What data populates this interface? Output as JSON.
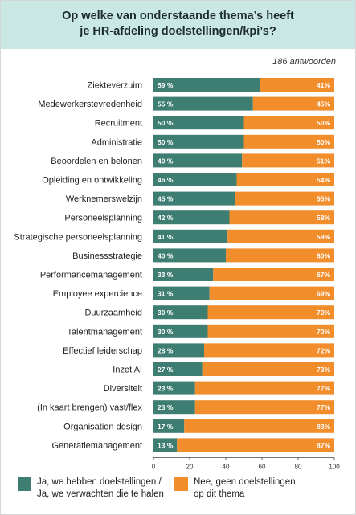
{
  "title_lines": [
    "Op welke van onderstaande thema’s heeft",
    "je HR-afdeling doelstellingen/kpi’s?"
  ],
  "responses": "186 antwoorden",
  "colors": {
    "yes": "#3d7d72",
    "no": "#f28d2c",
    "header_bg": "#c9e7e3"
  },
  "legend": [
    {
      "lines": [
        "Ja, we hebben doelstellingen /",
        "Ja, we verwachten die te halen"
      ]
    },
    {
      "lines": [
        "Nee, geen doelstellingen",
        "op dit thema"
      ]
    }
  ],
  "chart_data": {
    "type": "bar",
    "orientation": "horizontal",
    "stacked": true,
    "categories": [
      "Ziekteverzuim",
      "Medewerkerstevredenheid",
      "Recruitment",
      "Administratie",
      "Beoordelen en belonen",
      "Opleiding en ontwikkeling",
      "Werknemerswelzijn",
      "Personeelsplanning",
      "Strategische personeelsplanning",
      "Businessstrategie",
      "Performancemanagement",
      "Employee expercience",
      "Duurzaamheid",
      "Talentmanagement",
      "Effectief leiderschap",
      "Inzet AI",
      "Diversiteit",
      "(In kaart brengen) vast/flex",
      "Organisation design",
      "Generatiemanagement"
    ],
    "series": [
      {
        "name": "Ja, we hebben doelstellingen / Ja, we verwachten die te halen",
        "values": [
          59,
          55,
          50,
          50,
          49,
          46,
          45,
          42,
          41,
          40,
          33,
          31,
          30,
          30,
          28,
          27,
          23,
          23,
          17,
          13
        ],
        "labels": [
          "59 %",
          "55 %",
          "50 %",
          "50 %",
          "49 %",
          "46 %",
          "45 %",
          "42 %",
          "41 %",
          "40 %",
          "33 %",
          "31 %",
          "30 %",
          "30 %",
          "28 %",
          "27 %",
          "23 %",
          "23 %",
          "17 %",
          "13 %"
        ]
      },
      {
        "name": "Nee, geen doelstellingen op dit thema",
        "values": [
          41,
          45,
          50,
          50,
          51,
          54,
          55,
          58,
          59,
          60,
          67,
          69,
          70,
          70,
          72,
          73,
          77,
          77,
          83,
          87
        ],
        "labels": [
          "41%",
          "45%",
          "50%",
          "50%",
          "51%",
          "54%",
          "55%",
          "58%",
          "59%",
          "60%",
          "67%",
          "69%",
          "70%",
          "70%",
          "72%",
          "73%",
          "77%",
          "77%",
          "83%",
          "87%"
        ]
      }
    ],
    "xlim": [
      0,
      100
    ],
    "xticks": [
      "0",
      "20",
      "40",
      "60",
      "80",
      "100"
    ],
    "legend_position": "bottom"
  }
}
